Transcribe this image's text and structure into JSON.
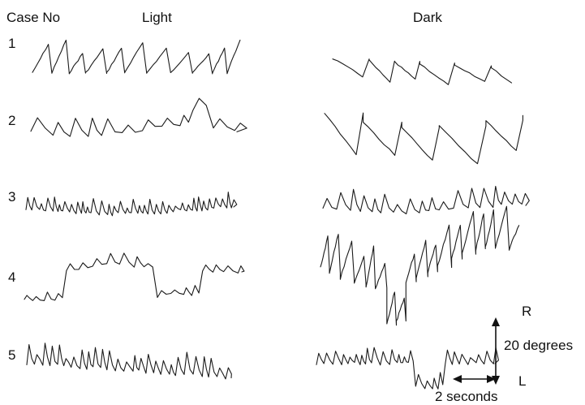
{
  "headers": {
    "case_no": "Case No",
    "light": "Light",
    "dark": "Dark"
  },
  "cases": [
    {
      "number": "1",
      "light_pattern": "regular-large-sawtooth",
      "dark_pattern": "large-slow-sawtooth"
    },
    {
      "number": "2",
      "light_pattern": "irregular-low-amplitude",
      "dark_pattern": "large-slow-sawtooth"
    },
    {
      "number": "3",
      "light_pattern": "fine-fast-jerky",
      "dark_pattern": "fine-jerky"
    },
    {
      "number": "4",
      "light_pattern": "stepwise-drift",
      "dark_pattern": "large-jerky"
    },
    {
      "number": "5",
      "light_pattern": "fine-jerky",
      "dark_pattern": "fine-jerky-drift"
    }
  ],
  "scale": {
    "right_label": "R",
    "left_label": "L",
    "amplitude_label": "20 degrees",
    "time_label": "2 seconds"
  }
}
